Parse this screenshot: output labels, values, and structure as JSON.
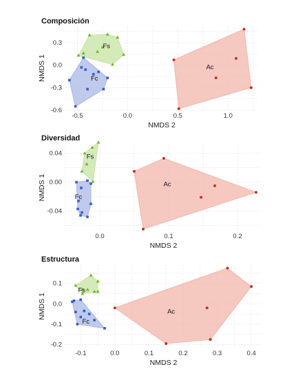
{
  "chart_data": [
    {
      "type": "scatter",
      "title": "Composición",
      "xlabel": "NMDS 2",
      "ylabel": "NMDS 1",
      "xlim": [
        -0.62,
        1.3
      ],
      "ylim": [
        -0.6,
        0.52
      ],
      "xticks": [
        -0.5,
        0.0,
        0.5,
        1.0
      ],
      "xtick_labels": [
        "-0.5",
        "0.0",
        "0.5",
        "1.0"
      ],
      "yticks": [
        -0.6,
        -0.3,
        0.0,
        0.3
      ],
      "ytick_labels": [
        "-0.6",
        "-0.3",
        "0.0",
        "0.3"
      ],
      "grid": true,
      "groups": [
        {
          "name": "Fc",
          "color": "#3b5cc4",
          "fill": "#a9b8e6",
          "marker": "square",
          "points": [
            [
              -0.58,
              -0.2
            ],
            [
              -0.52,
              -0.55
            ],
            [
              -0.46,
              -0.03
            ],
            [
              -0.4,
              -0.32
            ],
            [
              -0.34,
              -0.12
            ],
            [
              -0.24,
              -0.32
            ],
            [
              -0.44,
              0.1
            ],
            [
              -0.29,
              -0.09
            ],
            [
              -0.2,
              -0.17
            ],
            [
              -0.42,
              -0.06
            ]
          ]
        },
        {
          "name": "Fs",
          "color": "#6ab82a",
          "fill": "#c7e3a2",
          "marker": "triangle",
          "points": [
            [
              -0.49,
              0.13
            ],
            [
              -0.38,
              0.4
            ],
            [
              -0.2,
              0.41
            ],
            [
              -0.1,
              0.37
            ],
            [
              -0.04,
              0.14
            ],
            [
              -0.15,
              0.01
            ],
            [
              -0.3,
              0.18
            ],
            [
              -0.25,
              0.24
            ],
            [
              -0.44,
              0.16
            ]
          ]
        },
        {
          "name": "Ac",
          "color": "#c7321d",
          "fill": "#f2b7ab",
          "marker": "circle",
          "points": [
            [
              0.46,
              0.07
            ],
            [
              0.51,
              -0.58
            ],
            [
              1.16,
              0.48
            ],
            [
              1.23,
              -0.3
            ],
            [
              0.88,
              -0.17
            ],
            [
              1.08,
              0.09
            ]
          ]
        }
      ],
      "group_labels": [
        {
          "text": "Fc",
          "x": -0.33,
          "y": -0.18
        },
        {
          "text": "Fs",
          "x": -0.21,
          "y": 0.25
        },
        {
          "text": "Ac",
          "x": 0.82,
          "y": -0.03
        }
      ]
    },
    {
      "type": "scatter",
      "title": "Diversidad",
      "xlabel": "NMDS 2",
      "ylabel": "NMDS 1",
      "xlim": [
        -0.05,
        0.235
      ],
      "ylim": [
        -0.067,
        0.052
      ],
      "xticks": [
        0.0,
        0.1,
        0.2
      ],
      "xtick_labels": [
        "0.0",
        "0.1",
        "0.2"
      ],
      "yticks": [
        -0.04,
        0.0,
        0.04
      ],
      "ytick_labels": [
        "-0.04",
        "0.00",
        "0.04"
      ],
      "grid": true,
      "groups": [
        {
          "name": "Fc",
          "color": "#3b5cc4",
          "fill": "#a9b8e6",
          "marker": "square",
          "points": [
            [
              -0.034,
              0.0
            ],
            [
              -0.032,
              -0.037
            ],
            [
              -0.028,
              -0.046
            ],
            [
              -0.026,
              -0.042
            ],
            [
              -0.018,
              -0.048
            ],
            [
              -0.013,
              -0.03
            ],
            [
              -0.018,
              0.002
            ],
            [
              -0.013,
              -0.002
            ],
            [
              -0.027,
              -0.008
            ],
            [
              -0.031,
              -0.026
            ]
          ]
        },
        {
          "name": "Fs",
          "color": "#6ab82a",
          "fill": "#c7e3a2",
          "marker": "triangle",
          "points": [
            [
              -0.026,
              0.015
            ],
            [
              -0.022,
              0.04
            ],
            [
              -0.011,
              0.048
            ],
            [
              -0.002,
              0.055
            ],
            [
              -0.01,
              0.001
            ],
            [
              -0.019,
              0.025
            ]
          ]
        },
        {
          "name": "Ac",
          "color": "#c7321d",
          "fill": "#f2b7ab",
          "marker": "circle",
          "points": [
            [
              0.05,
              0.015
            ],
            [
              0.063,
              -0.065
            ],
            [
              0.093,
              0.033
            ],
            [
              0.147,
              -0.021
            ],
            [
              0.167,
              -0.005
            ],
            [
              0.227,
              -0.014
            ]
          ]
        }
      ],
      "group_labels": [
        {
          "text": "Fc",
          "x": -0.031,
          "y": -0.021
        },
        {
          "text": "Fs",
          "x": -0.014,
          "y": 0.035
        },
        {
          "text": "Ac",
          "x": 0.098,
          "y": -0.003
        }
      ]
    },
    {
      "type": "scatter",
      "title": "Estructura",
      "xlabel": "NMDS 2",
      "ylabel": "NMDS 1",
      "xlim": [
        -0.145,
        0.43
      ],
      "ylim": [
        -0.215,
        0.19
      ],
      "xticks": [
        -0.1,
        0.0,
        0.1,
        0.2,
        0.3,
        0.4
      ],
      "xtick_labels": [
        "-0.1",
        "0.0",
        "0.1",
        "0.2",
        "0.3",
        "0.4"
      ],
      "yticks": [
        -0.2,
        -0.1,
        0.0,
        0.1
      ],
      "ytick_labels": [
        "-0.2",
        "-0.1",
        "0.0",
        "0.1"
      ],
      "grid": true,
      "groups": [
        {
          "name": "Fc",
          "color": "#3b5cc4",
          "fill": "#a9b8e6",
          "marker": "square",
          "points": [
            [
              -0.125,
              0.01
            ],
            [
              -0.115,
              -0.04
            ],
            [
              -0.11,
              -0.1
            ],
            [
              -0.1,
              0.02
            ],
            [
              -0.1,
              -0.065
            ],
            [
              -0.09,
              -0.035
            ],
            [
              -0.03,
              -0.12
            ],
            [
              -0.06,
              -0.08
            ],
            [
              -0.075,
              -0.05
            ],
            [
              -0.12,
              0.015
            ]
          ]
        },
        {
          "name": "Fs",
          "color": "#6ab82a",
          "fill": "#c7e3a2",
          "marker": "triangle",
          "points": [
            [
              -0.115,
              0.09
            ],
            [
              -0.095,
              0.05
            ],
            [
              -0.07,
              0.14
            ],
            [
              -0.05,
              0.11
            ],
            [
              -0.05,
              0.06
            ],
            [
              -0.06,
              0.06
            ],
            [
              -0.08,
              0.07
            ],
            [
              -0.095,
              0.07
            ]
          ]
        },
        {
          "name": "Ac",
          "color": "#c7321d",
          "fill": "#f2b7ab",
          "marker": "circle",
          "points": [
            [
              0.0,
              -0.02
            ],
            [
              0.15,
              -0.195
            ],
            [
              0.28,
              -0.175
            ],
            [
              0.27,
              -0.02
            ],
            [
              0.33,
              0.175
            ],
            [
              0.4,
              0.085
            ]
          ]
        }
      ],
      "group_labels": [
        {
          "text": "Fc",
          "x": -0.085,
          "y": -0.088
        },
        {
          "text": "Fs",
          "x": -0.097,
          "y": 0.065
        },
        {
          "text": "Ac",
          "x": 0.165,
          "y": -0.04
        }
      ]
    }
  ]
}
